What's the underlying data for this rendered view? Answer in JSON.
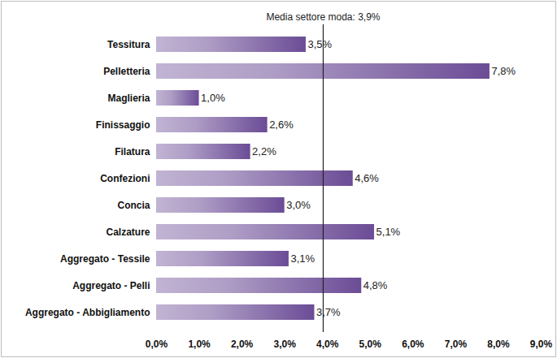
{
  "chart_data": {
    "type": "bar",
    "orientation": "horizontal",
    "categories": [
      "Tessitura",
      "Pelletteria",
      "Maglieria",
      "Finissaggio",
      "Filatura",
      "Confezioni",
      "Concia",
      "Calzature",
      "Aggregato - Tessile",
      "Aggregato - Pelli",
      "Aggregato - Abbigliamento"
    ],
    "values": [
      3.5,
      7.8,
      1.0,
      2.6,
      2.2,
      4.6,
      3.0,
      5.1,
      3.1,
      4.8,
      3.7
    ],
    "value_labels": [
      "3,5%",
      "7,8%",
      "1,0%",
      "2,6%",
      "2,2%",
      "4,6%",
      "3,0%",
      "5,1%",
      "3,1%",
      "4,8%",
      "3,7%"
    ],
    "data_labels": true,
    "color": "#6b4c96",
    "grid": false,
    "xlim": [
      0,
      9
    ],
    "xticks": [
      {
        "value": 0,
        "label": "0,0%"
      },
      {
        "value": 1,
        "label": "1,0%"
      },
      {
        "value": 2,
        "label": "2,0%"
      },
      {
        "value": 3,
        "label": "3,0%"
      },
      {
        "value": 4,
        "label": "4,0%"
      },
      {
        "value": 5,
        "label": "5,0%"
      },
      {
        "value": 6,
        "label": "6,0%"
      },
      {
        "value": 7,
        "label": "7,0%"
      },
      {
        "value": 8,
        "label": "8,0%"
      },
      {
        "value": 9,
        "label": "9,0%"
      }
    ],
    "annotations": [
      {
        "text": "Media settore moda: 3,9%",
        "x": 3.9
      }
    ]
  }
}
